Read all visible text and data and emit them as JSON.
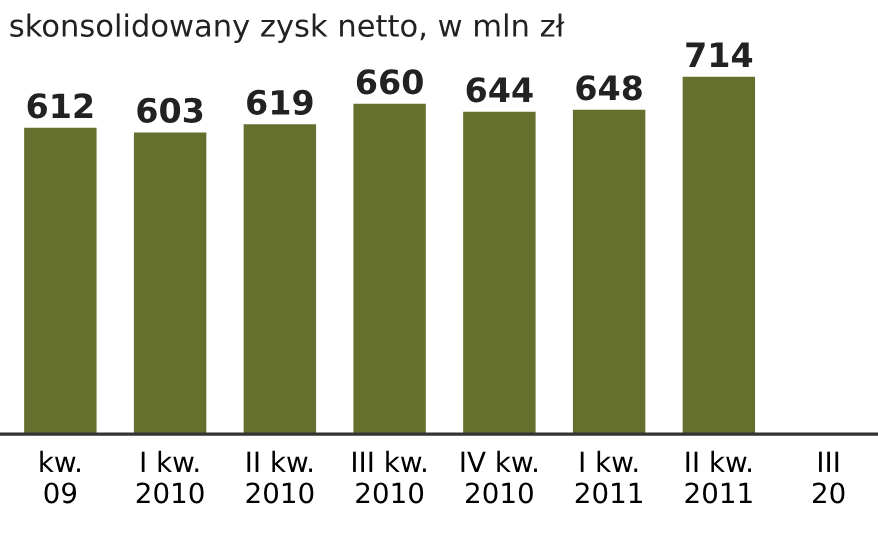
{
  "chart_data": {
    "type": "bar",
    "title": "skonsolidowany zysk netto, w mln zł",
    "categories": [
      "kw.\n09",
      "I kw.\n2010",
      "II kw.\n2010",
      "III kw.\n2010",
      "IV kw.\n2010",
      "I kw.\n2011",
      "II kw.\n2011",
      "III\n20"
    ],
    "values": [
      612,
      603,
      619,
      660,
      644,
      648,
      714,
      null
    ],
    "colors": [
      "#65702f",
      "#65702f",
      "#65702f",
      "#65702f",
      "#65702f",
      "#65702f",
      "#65702f",
      "#d9474c"
    ],
    "data_labels": true,
    "grid": false,
    "legend": false
  }
}
